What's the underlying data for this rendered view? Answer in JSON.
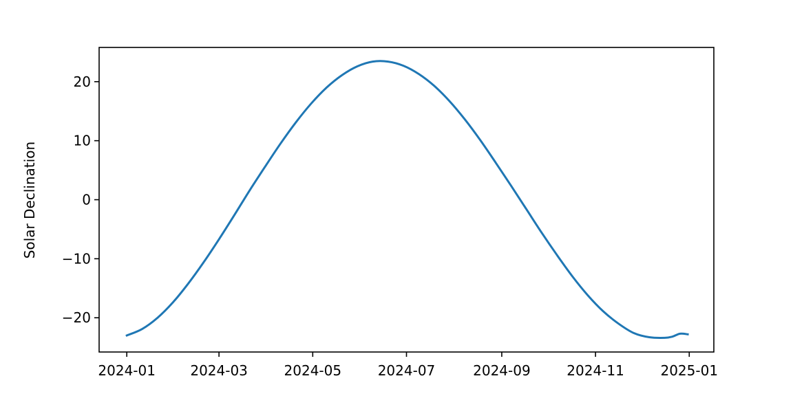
{
  "chart_data": {
    "type": "line",
    "title": "",
    "xlabel": "",
    "ylabel": "Solar Declination",
    "xlim": [
      "2023-12-14",
      "2025-01-17"
    ],
    "ylim": [
      -25.8,
      25.8
    ],
    "grid": false,
    "x_ticks": [
      "2024-01",
      "2024-03",
      "2024-05",
      "2024-07",
      "2024-09",
      "2024-11",
      "2025-01"
    ],
    "y_ticks": [
      20,
      10,
      0,
      -10,
      -20
    ],
    "y_tick_labels": [
      "20",
      "10",
      "0",
      "−10",
      "−20"
    ],
    "colors": {
      "line": "#1f77b4"
    },
    "series": [
      {
        "x": [
          "2024-01-01",
          "2024-01-11",
          "2024-01-21",
          "2024-01-31",
          "2024-02-10",
          "2024-02-20",
          "2024-03-01",
          "2024-03-11",
          "2024-03-21",
          "2024-03-31",
          "2024-04-10",
          "2024-04-20",
          "2024-04-30",
          "2024-05-10",
          "2024-05-20",
          "2024-05-30",
          "2024-06-09",
          "2024-06-19",
          "2024-06-29",
          "2024-07-09",
          "2024-07-19",
          "2024-07-29",
          "2024-08-08",
          "2024-08-18",
          "2024-08-28",
          "2024-09-07",
          "2024-09-17",
          "2024-09-27",
          "2024-10-07",
          "2024-10-17",
          "2024-10-27",
          "2024-11-06",
          "2024-11-16",
          "2024-11-26",
          "2024-12-06",
          "2024-12-16",
          "2024-12-21",
          "2024-12-26",
          "2024-12-31"
        ],
        "y": [
          -23.0,
          -21.9,
          -20.0,
          -17.4,
          -14.2,
          -10.6,
          -6.7,
          -2.6,
          1.6,
          5.6,
          9.5,
          13.1,
          16.3,
          19.0,
          21.1,
          22.6,
          23.4,
          23.4,
          22.7,
          21.3,
          19.3,
          16.7,
          13.6,
          10.1,
          6.3,
          2.4,
          -1.6,
          -5.6,
          -9.4,
          -13.0,
          -16.2,
          -18.9,
          -21.0,
          -22.6,
          -23.3,
          -23.4,
          -23.2,
          -22.7,
          -22.8
        ]
      }
    ]
  }
}
